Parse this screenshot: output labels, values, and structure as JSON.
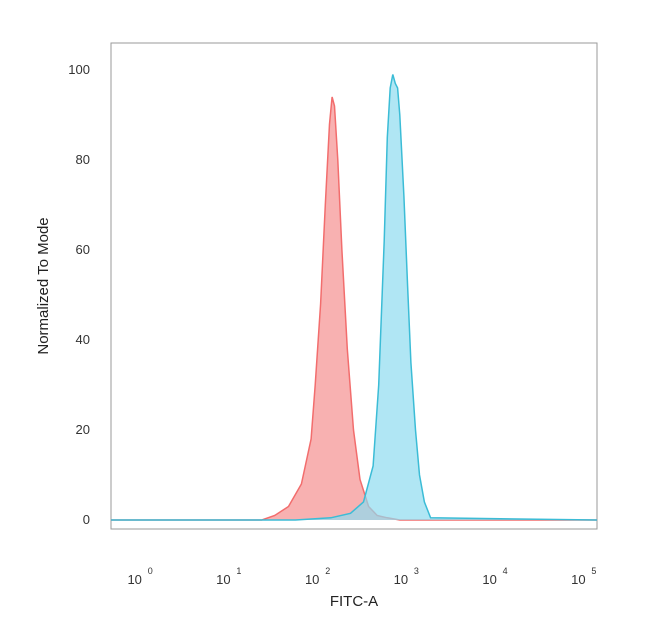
{
  "chart_data": {
    "type": "area",
    "xlabel": "FITC-A",
    "ylabel": "Normalized To Mode",
    "x_scale": "log",
    "xlim": [
      0.5,
      150000
    ],
    "ylim": [
      -2,
      106
    ],
    "y_ticks": [
      "0",
      "20",
      "40",
      "60",
      "80",
      "100"
    ],
    "x_ticks": [
      {
        "base": "10",
        "exp": "0",
        "value": 1
      },
      {
        "base": "10",
        "exp": "1",
        "value": 10
      },
      {
        "base": "10",
        "exp": "2",
        "value": 100
      },
      {
        "base": "10",
        "exp": "3",
        "value": 1000
      },
      {
        "base": "10",
        "exp": "4",
        "value": 10000
      },
      {
        "base": "10",
        "exp": "5",
        "value": 100000
      }
    ],
    "grid": false,
    "series": [
      {
        "color": "#f26d6d",
        "fill": "#f7a3a3",
        "x": [
          0.5,
          25,
          35,
          50,
          70,
          90,
          100,
          115,
          130,
          145,
          155,
          165,
          180,
          200,
          230,
          270,
          320,
          400,
          500,
          650,
          900,
          1500,
          150000
        ],
        "y": [
          0,
          0,
          1,
          3,
          8,
          18,
          30,
          48,
          70,
          88,
          94,
          92,
          80,
          60,
          38,
          20,
          9,
          3,
          1,
          0.5,
          0,
          0,
          0
        ]
      },
      {
        "color": "#3bbcd6",
        "fill": "#8fdcef",
        "x": [
          0.5,
          60,
          150,
          250,
          350,
          450,
          520,
          600,
          650,
          700,
          750,
          800,
          850,
          900,
          1000,
          1100,
          1200,
          1350,
          1500,
          1700,
          2000,
          150000
        ],
        "y": [
          0,
          0,
          0.5,
          1.5,
          4,
          12,
          30,
          62,
          85,
          96,
          99,
          97,
          96,
          90,
          72,
          52,
          35,
          20,
          10,
          4,
          0.5,
          0
        ]
      }
    ]
  }
}
